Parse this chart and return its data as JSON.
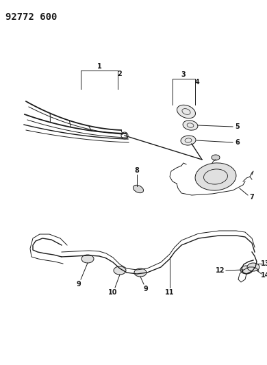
{
  "title": "92772 600",
  "bg_color": "#ffffff",
  "line_color": "#1a1a1a",
  "label_color": "#1a1a1a",
  "title_fontsize": 10,
  "label_fontsize": 7,
  "figsize": [
    3.9,
    5.33
  ],
  "dpi": 100
}
